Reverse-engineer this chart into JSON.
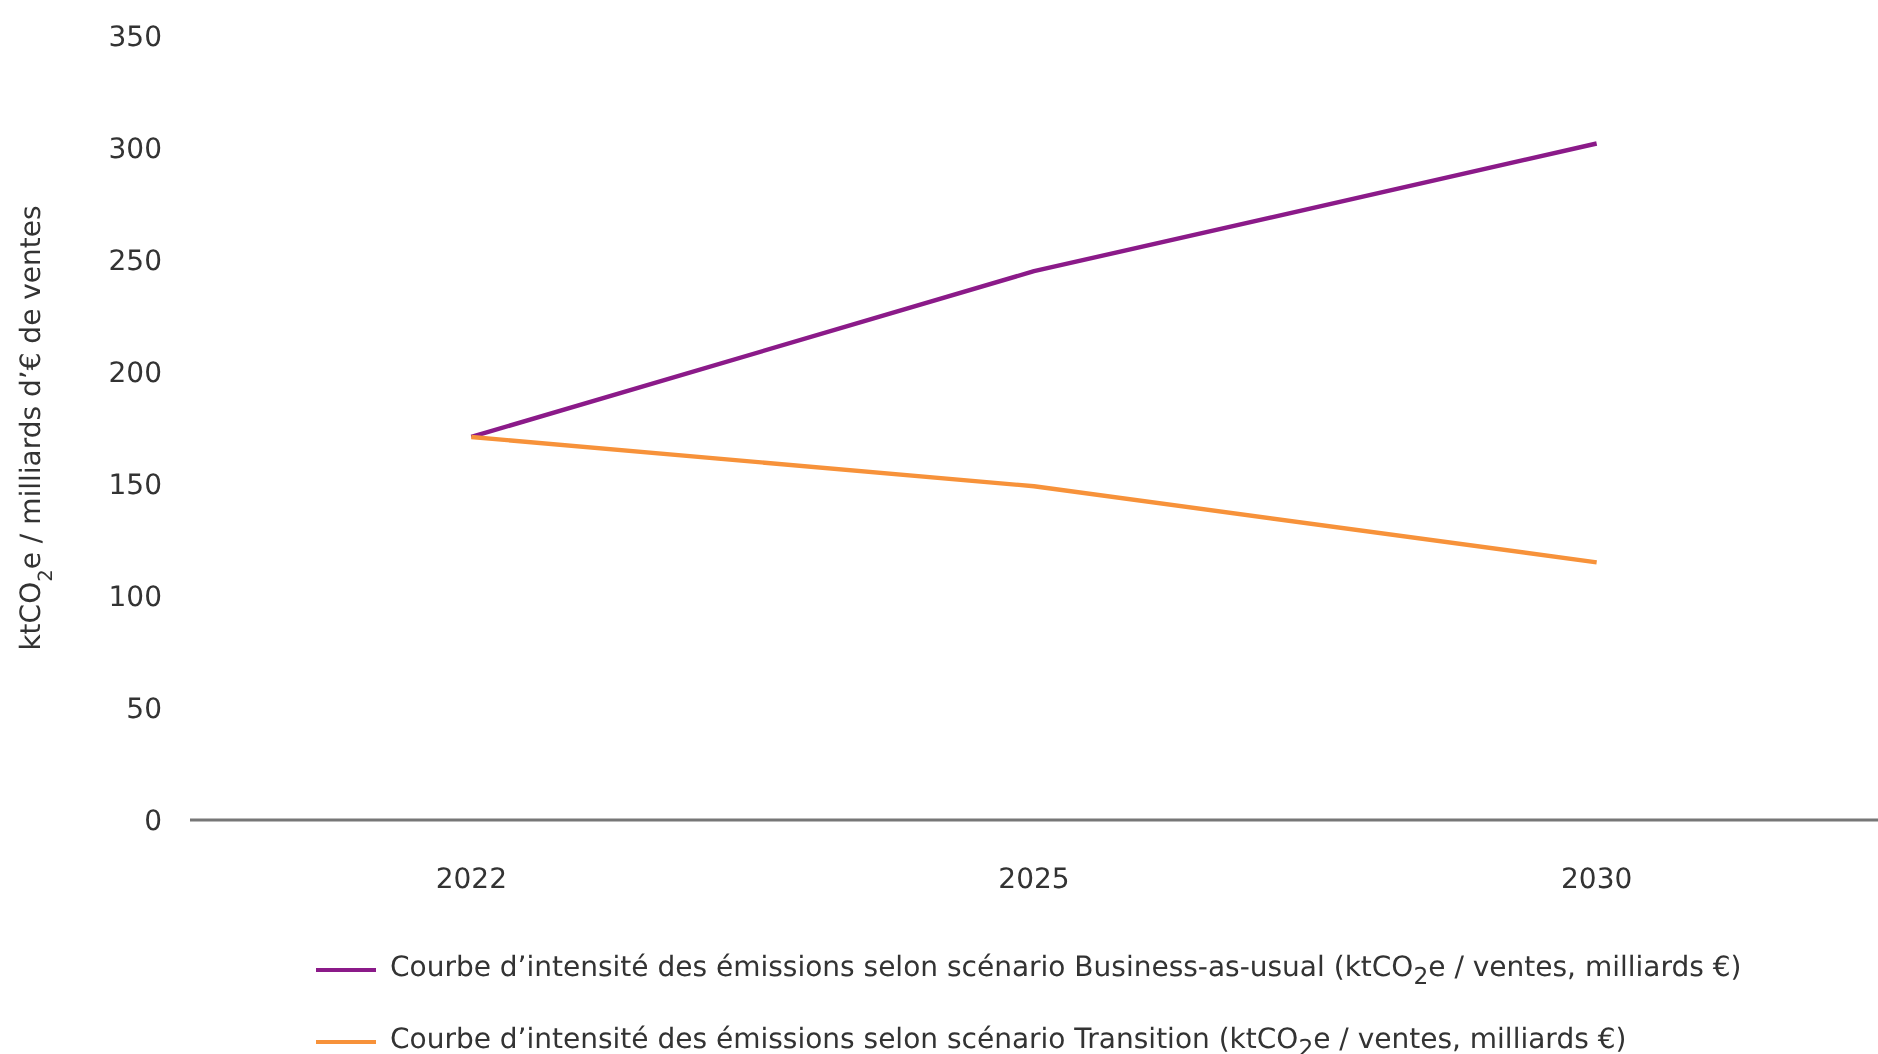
{
  "chart_data": {
    "type": "line",
    "ylabel": "ktCO$_{2}$e / milliards d’€ de ventes",
    "categories": [
      "2022",
      "2025",
      "2030"
    ],
    "series": [
      {
        "name": "Courbe d’intensité des émissions selon scénario Business-as-usual (ktCO$_{2}$e / ventes, milliards €)",
        "color": "#8b1a89",
        "values": [
          171,
          245,
          302
        ]
      },
      {
        "name": "Courbe d’intensité des émissions selon scénario Transition (ktCO$_{2}$e / ventes, milliards €)",
        "color": "#f7923a",
        "values": [
          171,
          149,
          115
        ]
      }
    ],
    "ylim": [
      0,
      350
    ],
    "yticks": [
      0,
      50,
      100,
      150,
      200,
      250,
      300,
      350
    ],
    "grid": false,
    "legend": "bottom",
    "marker": "none",
    "line_style": "solid"
  }
}
